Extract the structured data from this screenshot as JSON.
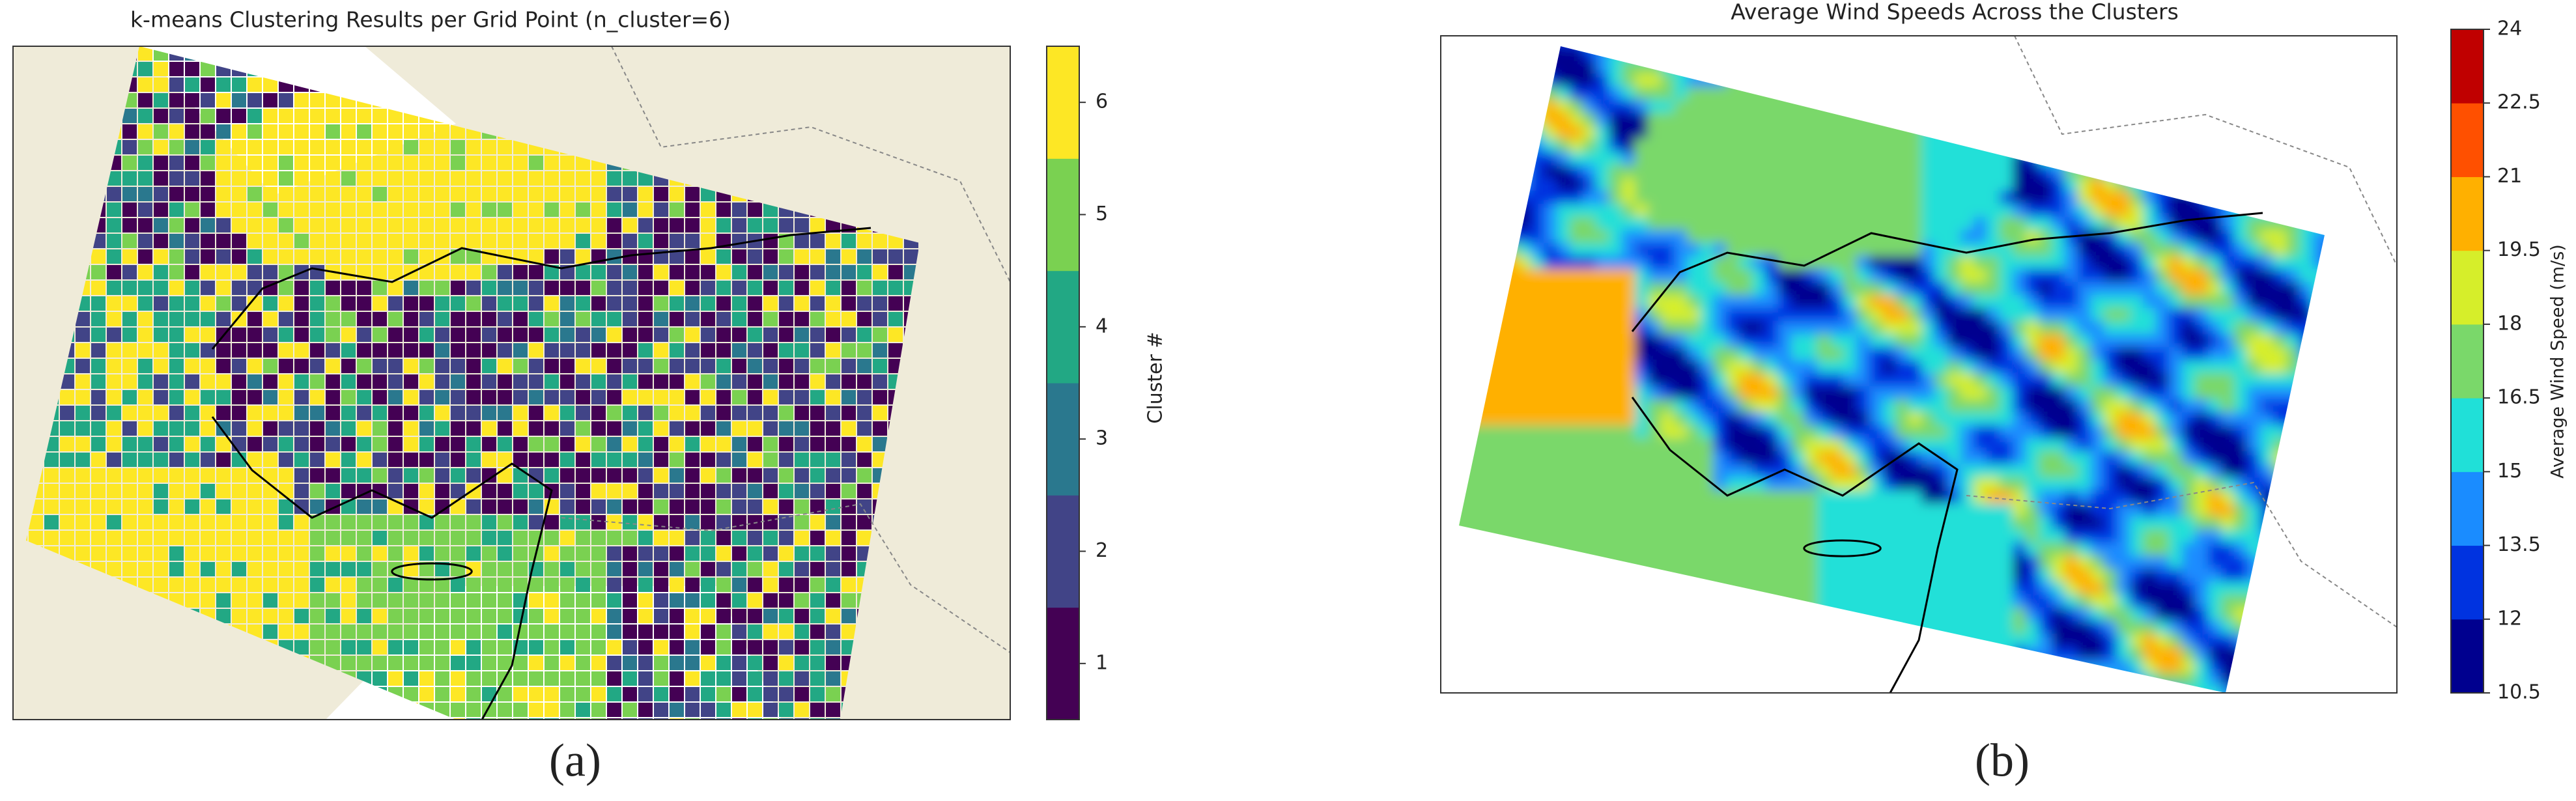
{
  "panels": [
    {
      "title": "k-means Clustering Results per Grid Point (n_cluster=6)",
      "label": "(a)",
      "colorbar": {
        "label": "Cluster #",
        "lim": [
          0.5,
          6.5
        ],
        "ticks": [
          1,
          2,
          3,
          4,
          5,
          6
        ],
        "colors": [
          "#440154",
          "#414487",
          "#2a788e",
          "#22a884",
          "#7ad151",
          "#fde725"
        ]
      }
    },
    {
      "title": "Average Wind Speeds Across the Clusters",
      "label": "(b)",
      "colorbar": {
        "label": "Average Wind Speed (m/s)",
        "lim": [
          10.5,
          24
        ],
        "ticks": [
          10.5,
          12,
          13.5,
          15,
          16.5,
          18,
          19.5,
          21,
          22.5,
          24
        ],
        "colors": [
          "#00008f",
          "#0033e0",
          "#1a8cff",
          "#20e0d8",
          "#7ad86a",
          "#d6ee2a",
          "#ffb000",
          "#ff5000",
          "#c00000"
        ]
      }
    }
  ]
}
